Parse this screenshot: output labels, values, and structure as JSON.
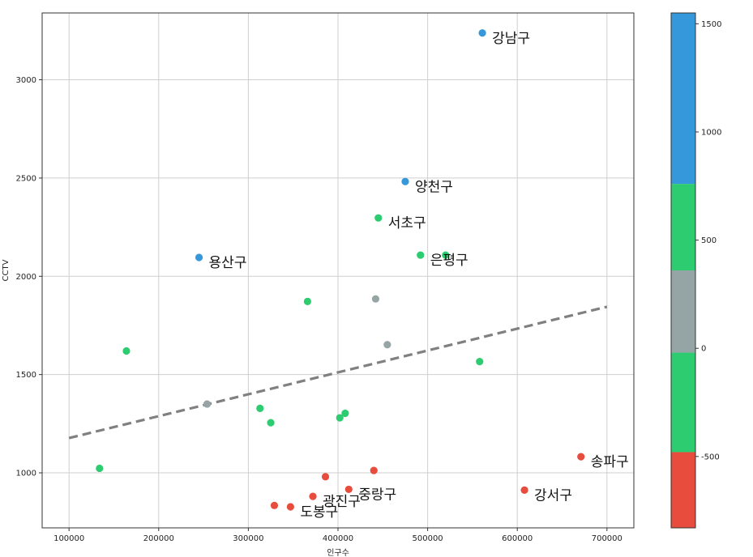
{
  "chart_data": {
    "type": "scatter",
    "xlabel": "인구수",
    "ylabel": "CCTV",
    "xlim": [
      70000,
      730000
    ],
    "ylim": [
      720,
      3340
    ],
    "x_ticks": [
      100000,
      200000,
      300000,
      400000,
      500000,
      600000,
      700000
    ],
    "y_ticks": [
      1000,
      1500,
      2000,
      2500,
      3000
    ],
    "grid": true,
    "trend_line": {
      "x": [
        100000,
        700000
      ],
      "y": [
        1177,
        1845
      ],
      "color": "#808080",
      "style": "dashed"
    },
    "colorbar": {
      "range": [
        -830,
        1550
      ],
      "ticks": [
        -500,
        0,
        500,
        1000,
        1500
      ],
      "bands": [
        {
          "from": -830,
          "to": -480,
          "color": "#e74c3c"
        },
        {
          "from": -480,
          "to": -20,
          "color": "#2ecc71"
        },
        {
          "from": -20,
          "to": 360,
          "color": "#95a5a6"
        },
        {
          "from": 360,
          "to": 760,
          "color": "#2ecc71"
        },
        {
          "from": 760,
          "to": 1550,
          "color": "#3498db"
        }
      ]
    },
    "points": [
      {
        "x": 561000,
        "y": 3238,
        "color": "#3498db",
        "label": "강남구"
      },
      {
        "x": 475000,
        "y": 2482,
        "color": "#3498db",
        "label": "양천구"
      },
      {
        "x": 245000,
        "y": 2096,
        "color": "#3498db",
        "label": "용산구"
      },
      {
        "x": 445000,
        "y": 2297,
        "color": "#2ecc71",
        "label": "서초구"
      },
      {
        "x": 492000,
        "y": 2108,
        "color": "#2ecc71",
        "label": "은평구"
      },
      {
        "x": 520000,
        "y": 2108,
        "color": "#2ecc71",
        "label": ""
      },
      {
        "x": 366000,
        "y": 1872,
        "color": "#2ecc71",
        "label": ""
      },
      {
        "x": 164000,
        "y": 1620,
        "color": "#2ecc71",
        "label": ""
      },
      {
        "x": 558000,
        "y": 1566,
        "color": "#2ecc71",
        "label": ""
      },
      {
        "x": 313000,
        "y": 1328,
        "color": "#2ecc71",
        "label": ""
      },
      {
        "x": 325000,
        "y": 1255,
        "color": "#2ecc71",
        "label": ""
      },
      {
        "x": 402000,
        "y": 1280,
        "color": "#2ecc71",
        "label": ""
      },
      {
        "x": 408000,
        "y": 1303,
        "color": "#2ecc71",
        "label": ""
      },
      {
        "x": 134000,
        "y": 1023,
        "color": "#2ecc71",
        "label": ""
      },
      {
        "x": 442000,
        "y": 1885,
        "color": "#95a5a6",
        "label": ""
      },
      {
        "x": 455000,
        "y": 1652,
        "color": "#95a5a6",
        "label": ""
      },
      {
        "x": 254000,
        "y": 1350,
        "color": "#95a5a6",
        "label": ""
      },
      {
        "x": 671000,
        "y": 1082,
        "color": "#e74c3c",
        "label": "송파구"
      },
      {
        "x": 608000,
        "y": 912,
        "color": "#e74c3c",
        "label": "강서구"
      },
      {
        "x": 440000,
        "y": 1012,
        "color": "#e74c3c",
        "label": ""
      },
      {
        "x": 386000,
        "y": 980,
        "color": "#e74c3c",
        "label": ""
      },
      {
        "x": 412000,
        "y": 916,
        "color": "#e74c3c",
        "label": "중랑구"
      },
      {
        "x": 372000,
        "y": 880,
        "color": "#e74c3c",
        "label": "광진구"
      },
      {
        "x": 329000,
        "y": 834,
        "color": "#e74c3c",
        "label": ""
      },
      {
        "x": 347000,
        "y": 827,
        "color": "#e74c3c",
        "label": "도봉구"
      }
    ]
  }
}
